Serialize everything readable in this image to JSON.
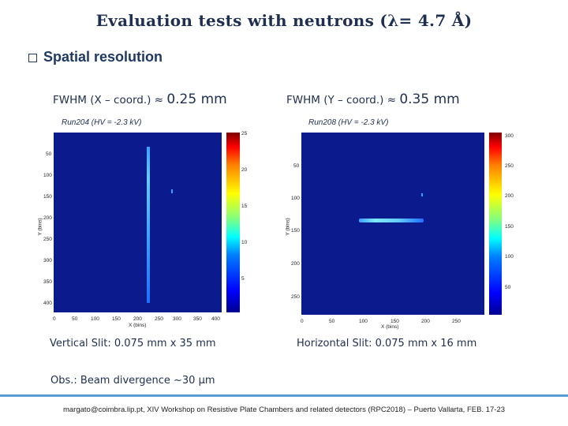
{
  "title": "Evaluation tests with neutrons (λ= 4.7 Å)",
  "section": "Spatial resolution",
  "left": {
    "fwhm_label": "FWHM (X – coord.) ≈ ",
    "fwhm_value": "0.25 mm",
    "run": "Run204 (HV = -2.3 kV)",
    "y_ticks": [
      "50",
      "100",
      "150",
      "200",
      "250",
      "300",
      "350",
      "400"
    ],
    "x_ticks": [
      "0",
      "50",
      "100",
      "150",
      "200",
      "250",
      "300",
      "350",
      "400"
    ],
    "cbar_ticks": [
      "25",
      "20",
      "15",
      "10",
      "5"
    ],
    "xlabel": "X (bins)",
    "ylabel": "Y (bins)",
    "slit_label": "Vertical Slit:",
    "slit_value": " 0.075 mm x 35 mm"
  },
  "right": {
    "fwhm_label": "FWHM (Y – coord.) ≈ ",
    "fwhm_value": "0.35 mm",
    "run": "Run208 (HV = -2.3 kV)",
    "y_ticks": [
      "50",
      "100",
      "150",
      "200",
      "250"
    ],
    "x_ticks": [
      "0",
      "50",
      "100",
      "150",
      "200",
      "250"
    ],
    "cbar_ticks": [
      "300",
      "250",
      "200",
      "150",
      "100",
      "50"
    ],
    "xlabel": "X (bins)",
    "ylabel": "Y (bins)",
    "slit_label": "Horizontal Slit:",
    "slit_value": " 0.075 mm x 16 mm"
  },
  "obs": "Obs.: Beam divergence ~30 μm",
  "footer": "margato@coimbra.lip.pt,  XIV Workshop on Resistive Plate Chambers and related detectors (RPC2018) – Puerto Vallarta, FEB. 17-23",
  "colors": {
    "title": "#1f2f4f",
    "accent": "#5b9bd5",
    "plot_bg": "#0b1a8c"
  }
}
